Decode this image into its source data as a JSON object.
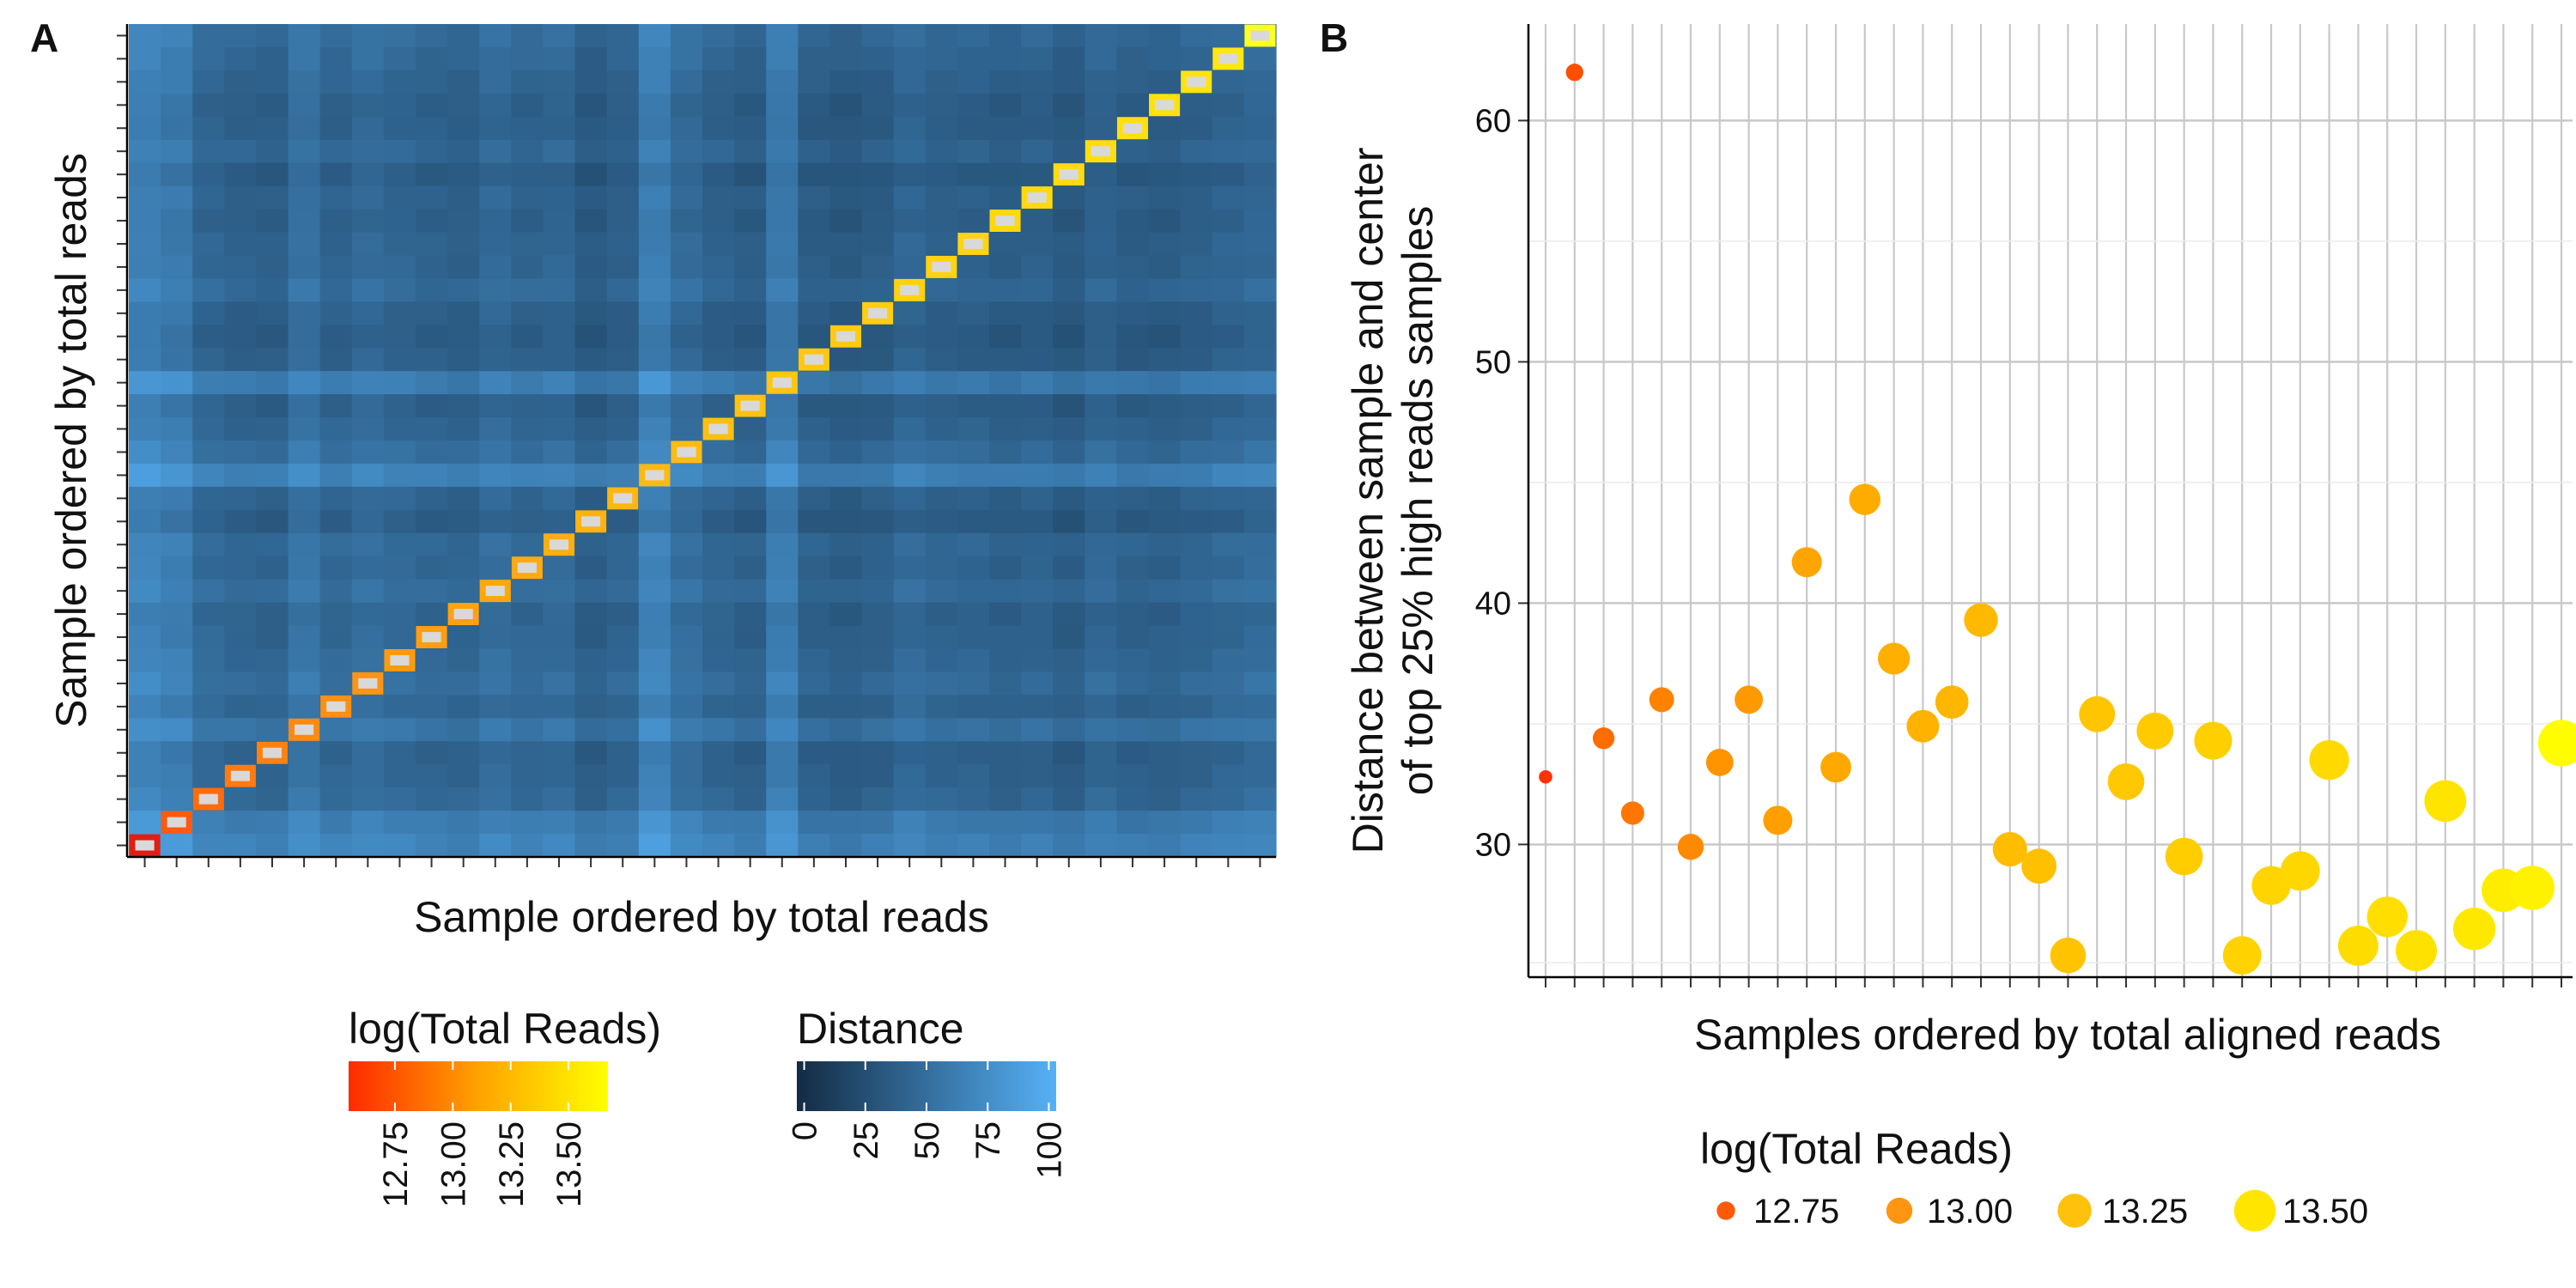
{
  "panels": {
    "a": {
      "label": "A",
      "xlabel": "Sample ordered by total reads",
      "ylabel": "Sample ordered by total reads"
    },
    "b": {
      "label": "B",
      "xlabel": "Samples ordered by total aligned reads",
      "ylabel_line1": "Distance between sample and center",
      "ylabel_line2": "of top 25% high reads samples"
    }
  },
  "legends": {
    "reads_colorbar": {
      "title": "log(Total Reads)",
      "ticks": [
        12.75,
        13.0,
        13.25,
        13.5
      ],
      "tick_labels": [
        "12.75",
        "13.00",
        "13.25",
        "13.50"
      ],
      "range": [
        12.55,
        13.67
      ],
      "colors": [
        "#ff2a00",
        "#ffa200",
        "#ffff00"
      ]
    },
    "distance_colorbar": {
      "title": "Distance",
      "ticks": [
        0,
        25,
        50,
        75,
        100
      ],
      "tick_labels": [
        "0",
        "25",
        "50",
        "75",
        "100"
      ],
      "range": [
        -3,
        103
      ],
      "colors": [
        "#132b43",
        "#56b1f7"
      ]
    },
    "reads_size": {
      "title": "log(Total Reads)",
      "entries": [
        {
          "label": "12.75",
          "value": 12.75,
          "color": "#ff5a0a"
        },
        {
          "label": "13.00",
          "value": 13.0,
          "color": "#ff9511"
        },
        {
          "label": "13.25",
          "value": 13.25,
          "color": "#ffc10c"
        },
        {
          "label": "13.50",
          "value": 13.5,
          "color": "#ffe500"
        }
      ]
    }
  },
  "chart_data": [
    {
      "type": "heatmap",
      "panel": "A",
      "xlabel": "Sample ordered by total reads",
      "ylabel": "Sample ordered by total reads",
      "n_samples": 36,
      "value_label": "Distance",
      "value_range": [
        0,
        100
      ],
      "diagonal_border_colors": [
        "#e21d12",
        "#ff5a10",
        "#ff6c10",
        "#ff7a10",
        "#ff8210",
        "#ff8a10",
        "#ff9010",
        "#ff9510",
        "#ff9a10",
        "#ff9e10",
        "#ffa210",
        "#ffa610",
        "#ffaa10",
        "#ffae10",
        "#ffb210",
        "#ffb610",
        "#ffb910",
        "#ffbc10",
        "#ffbf10",
        "#ffc210",
        "#ffc510",
        "#ffc810",
        "#ffcb10",
        "#ffce10",
        "#ffd110",
        "#ffd310",
        "#ffd510",
        "#ffd710",
        "#ffd910",
        "#ffdb10",
        "#ffdd10",
        "#ffdf10",
        "#ffe110",
        "#ffe310",
        "#ffe710",
        "#ffff20"
      ],
      "diagonal_fill": "#d9d9d9",
      "sample_profile": [
        96,
        85,
        55,
        48,
        44,
        72,
        50,
        62,
        54,
        48,
        45,
        60,
        50,
        55,
        36,
        46,
        92,
        62,
        48,
        40,
        84,
        40,
        34,
        40,
        55,
        46,
        45,
        39,
        44,
        34,
        50,
        40,
        39,
        46,
        52,
        58
      ]
    },
    {
      "type": "scatter",
      "panel": "B",
      "xlabel": "Samples ordered by total aligned reads",
      "ylabel": "Distance between sample and center of top 25% high reads samples",
      "y_ticks": [
        30,
        40,
        50,
        60
      ],
      "ylim": [
        24.5,
        64
      ],
      "n_samples": 36,
      "grid": true,
      "points": [
        {
          "x": 1,
          "y": 32.8,
          "log_total_reads": 12.59
        },
        {
          "x": 2,
          "y": 62.0,
          "log_total_reads": 12.72
        },
        {
          "x": 3,
          "y": 34.4,
          "log_total_reads": 12.86
        },
        {
          "x": 4,
          "y": 31.3,
          "log_total_reads": 12.91
        },
        {
          "x": 5,
          "y": 36.0,
          "log_total_reads": 12.96
        },
        {
          "x": 6,
          "y": 29.9,
          "log_total_reads": 13.0
        },
        {
          "x": 7,
          "y": 33.4,
          "log_total_reads": 13.04
        },
        {
          "x": 8,
          "y": 36.0,
          "log_total_reads": 13.07
        },
        {
          "x": 9,
          "y": 31.0,
          "log_total_reads": 13.1
        },
        {
          "x": 10,
          "y": 41.7,
          "log_total_reads": 13.13
        },
        {
          "x": 11,
          "y": 33.2,
          "log_total_reads": 13.15
        },
        {
          "x": 12,
          "y": 44.3,
          "log_total_reads": 13.17
        },
        {
          "x": 13,
          "y": 37.7,
          "log_total_reads": 13.19
        },
        {
          "x": 14,
          "y": 34.9,
          "log_total_reads": 13.21
        },
        {
          "x": 15,
          "y": 35.9,
          "log_total_reads": 13.23
        },
        {
          "x": 16,
          "y": 39.3,
          "log_total_reads": 13.25
        },
        {
          "x": 17,
          "y": 29.8,
          "log_total_reads": 13.27
        },
        {
          "x": 18,
          "y": 29.1,
          "log_total_reads": 13.29
        },
        {
          "x": 19,
          "y": 25.4,
          "log_total_reads": 13.31
        },
        {
          "x": 20,
          "y": 35.4,
          "log_total_reads": 13.32
        },
        {
          "x": 21,
          "y": 32.6,
          "log_total_reads": 13.34
        },
        {
          "x": 22,
          "y": 34.7,
          "log_total_reads": 13.35
        },
        {
          "x": 23,
          "y": 29.5,
          "log_total_reads": 13.37
        },
        {
          "x": 24,
          "y": 34.3,
          "log_total_reads": 13.38
        },
        {
          "x": 25,
          "y": 25.4,
          "log_total_reads": 13.4
        },
        {
          "x": 26,
          "y": 28.3,
          "log_total_reads": 13.41
        },
        {
          "x": 27,
          "y": 28.9,
          "log_total_reads": 13.43
        },
        {
          "x": 28,
          "y": 33.5,
          "log_total_reads": 13.44
        },
        {
          "x": 29,
          "y": 25.8,
          "log_total_reads": 13.46
        },
        {
          "x": 30,
          "y": 27.0,
          "log_total_reads": 13.47
        },
        {
          "x": 31,
          "y": 25.6,
          "log_total_reads": 13.49
        },
        {
          "x": 32,
          "y": 31.8,
          "log_total_reads": 13.51
        },
        {
          "x": 33,
          "y": 26.5,
          "log_total_reads": 13.53
        },
        {
          "x": 34,
          "y": 28.1,
          "log_total_reads": 13.56
        },
        {
          "x": 35,
          "y": 28.2,
          "log_total_reads": 13.59
        },
        {
          "x": 36,
          "y": 34.2,
          "log_total_reads": 13.66
        }
      ]
    }
  ]
}
